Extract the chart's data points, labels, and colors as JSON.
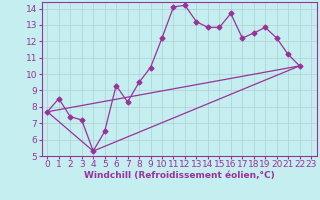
{
  "xlabel": "Windchill (Refroidissement éolien,°C)",
  "bg_color": "#c5eef0",
  "line_color": "#993399",
  "xlim": [
    -0.5,
    23.5
  ],
  "ylim": [
    5,
    14.4
  ],
  "xticks": [
    0,
    1,
    2,
    3,
    4,
    5,
    6,
    7,
    8,
    9,
    10,
    11,
    12,
    13,
    14,
    15,
    16,
    17,
    18,
    19,
    20,
    21,
    22,
    23
  ],
  "yticks": [
    5,
    6,
    7,
    8,
    9,
    10,
    11,
    12,
    13,
    14
  ],
  "main_x": [
    0,
    1,
    2,
    3,
    4,
    5,
    6,
    7,
    8,
    9,
    10,
    11,
    12,
    13,
    14,
    15,
    16,
    17,
    18,
    19,
    20,
    21,
    22
  ],
  "main_y": [
    7.7,
    8.5,
    7.4,
    7.2,
    5.3,
    6.5,
    9.3,
    8.3,
    9.5,
    10.4,
    12.2,
    14.1,
    14.2,
    13.2,
    12.85,
    12.85,
    13.7,
    12.2,
    12.5,
    12.85,
    12.2,
    11.2,
    10.5
  ],
  "line2_x": [
    0,
    22
  ],
  "line2_y": [
    7.7,
    10.5
  ],
  "line3_x": [
    0,
    4,
    22
  ],
  "line3_y": [
    7.7,
    5.3,
    10.5
  ],
  "grid_color": "#b0cfd0",
  "marker": "D",
  "markersize": 2.5,
  "linewidth": 0.9,
  "xlabel_fontsize": 6.5,
  "tick_fontsize": 6.5
}
